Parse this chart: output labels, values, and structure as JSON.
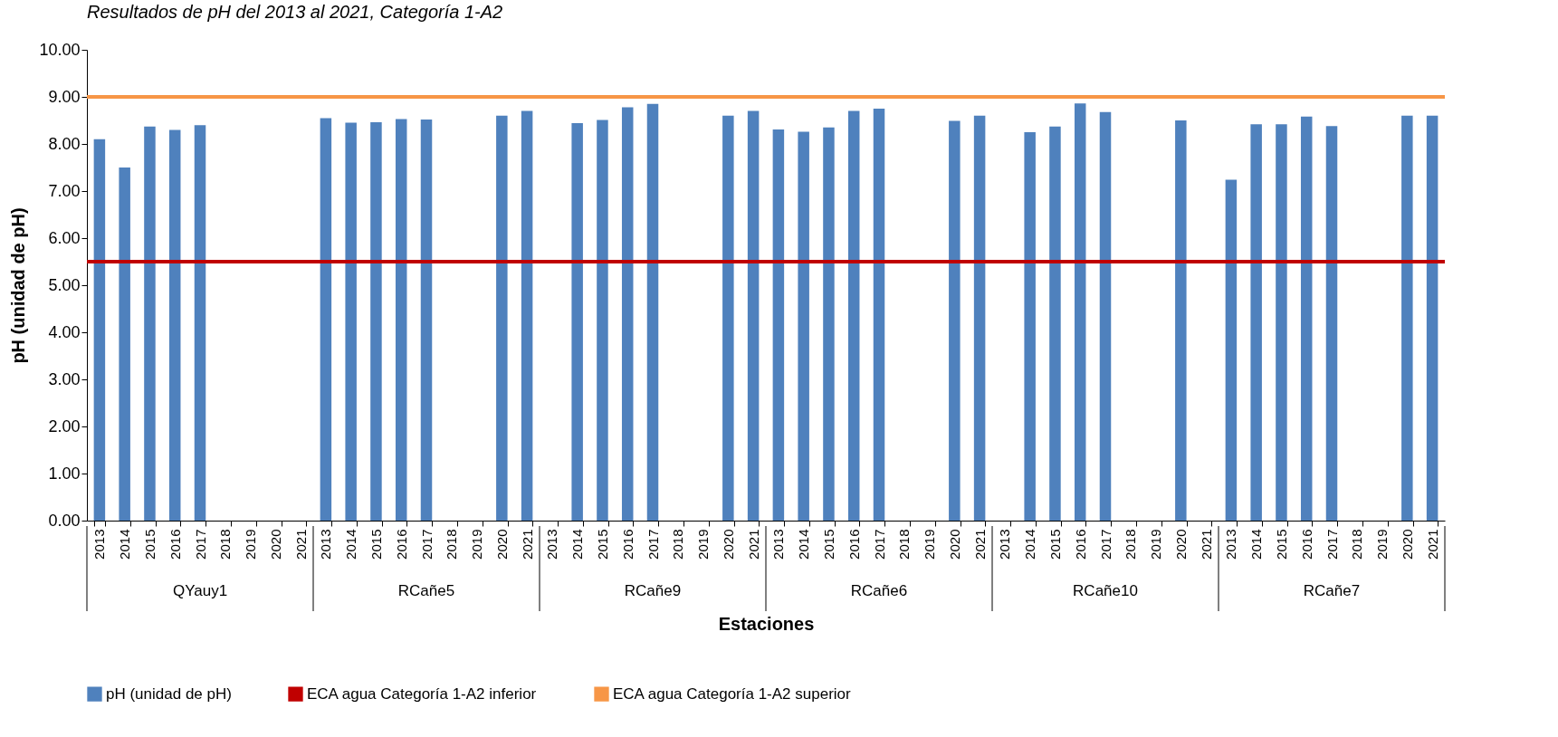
{
  "chart_data": {
    "type": "bar",
    "title": "Resultados de pH del 2013 al 2021, Categoría 1-A2",
    "xlabel": "Estaciones",
    "ylabel": "pH (unidad de pH)",
    "categories": [
      "2013",
      "2014",
      "2015",
      "2016",
      "2017",
      "2018",
      "2019",
      "2020",
      "2021",
      "2013",
      "2014",
      "2015",
      "2016",
      "2017",
      "2018",
      "2019",
      "2020",
      "2021",
      "2013",
      "2014",
      "2015",
      "2016",
      "2017",
      "2018",
      "2019",
      "2020",
      "2021",
      "2013",
      "2014",
      "2015",
      "2016",
      "2017",
      "2018",
      "2019",
      "2020",
      "2021",
      "2013",
      "2014",
      "2015",
      "2016",
      "2017",
      "2018",
      "2019",
      "2020",
      "2021",
      "2013",
      "2014",
      "2015",
      "2016",
      "2017",
      "2018",
      "2019",
      "2020",
      "2021"
    ],
    "annotations": [
      "QYauy1",
      "RCañe5",
      "RCañe9",
      "RCañe6",
      "RCañe10",
      "RCañe7"
    ],
    "series": [
      {
        "name": "pH (unidad de pH)",
        "color": "#4f81bd",
        "values": [
          8.1,
          7.5,
          8.37,
          8.3,
          8.4,
          null,
          null,
          null,
          null,
          8.55,
          8.45,
          8.46,
          8.53,
          8.52,
          null,
          null,
          8.6,
          8.7,
          null,
          8.44,
          8.51,
          8.78,
          8.85,
          null,
          null,
          8.6,
          8.7,
          8.31,
          8.26,
          8.35,
          8.7,
          8.75,
          null,
          null,
          8.49,
          8.6,
          null,
          8.25,
          8.37,
          8.86,
          8.68,
          null,
          null,
          8.5,
          null,
          7.24,
          8.42,
          8.42,
          8.58,
          8.38,
          null,
          null,
          8.6,
          8.6
        ]
      }
    ],
    "ref_lines": [
      {
        "axis": "y",
        "value": 5.5,
        "label": "ECA agua Categoría 1-A2 inferior",
        "color": "#c00000"
      },
      {
        "axis": "y",
        "value": 9.0,
        "label": "ECA agua Categoría 1-A2 superior",
        "color": "#f79646"
      }
    ],
    "ylim": [
      0,
      10
    ],
    "yticks": [
      {
        "value": 0,
        "label": "0.00"
      },
      {
        "value": 1,
        "label": "1.00"
      },
      {
        "value": 2,
        "label": "2.00"
      },
      {
        "value": 3,
        "label": "3.00"
      },
      {
        "value": 4,
        "label": "4.00"
      },
      {
        "value": 5,
        "label": "5.00"
      },
      {
        "value": 6,
        "label": "6.00"
      },
      {
        "value": 7,
        "label": "7.00"
      },
      {
        "value": 8,
        "label": "8.00"
      },
      {
        "value": 9,
        "label": "9.00"
      },
      {
        "value": 10,
        "label": "10.00"
      }
    ],
    "grid": false,
    "legend": "bottom"
  }
}
